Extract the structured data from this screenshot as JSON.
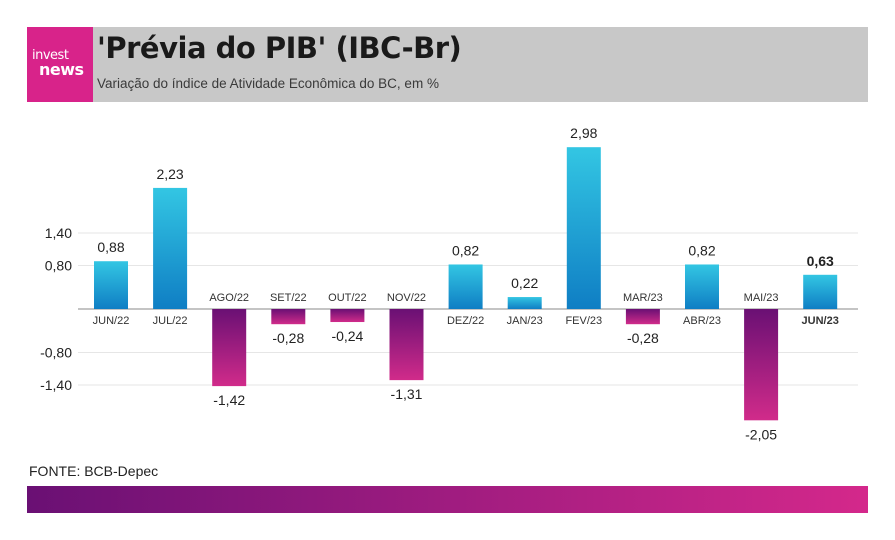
{
  "header": {
    "logo_top": "invest",
    "logo_bottom": "news",
    "title": "'Prévia do PIB' (IBC-Br)",
    "subtitle": "Variação do índice de Atividade Econômica do BC, em %"
  },
  "source": "FONTE: BCB-Depec",
  "colors": {
    "positive_top": "#33c6e3",
    "positive_bottom": "#0f7ec4",
    "negative_top": "#6a1074",
    "negative_bottom": "#d12b8a",
    "header_bg": "#c8c8c8",
    "logo_bg": "#d8238a"
  },
  "chart_data": {
    "type": "bar",
    "title": "'Prévia do PIB' (IBC-Br)",
    "subtitle": "Variação do índice de Atividade Econômica do BC, em %",
    "categories": [
      "JUN/22",
      "JUL/22",
      "AGO/22",
      "SET/22",
      "OUT/22",
      "NOV/22",
      "DEZ/22",
      "JAN/23",
      "FEV/23",
      "MAR/23",
      "ABR/23",
      "MAI/23",
      "JUN/23"
    ],
    "values": [
      0.88,
      2.23,
      -1.42,
      -0.28,
      -0.24,
      -1.31,
      0.82,
      0.22,
      2.98,
      -0.28,
      0.82,
      -2.05,
      0.63
    ],
    "value_labels": [
      "0,88",
      "2,23",
      "-1,42",
      "-0,28",
      "-0,24",
      "-1,31",
      "0,82",
      "0,22",
      "2,98",
      "-0,28",
      "0,82",
      "-2,05",
      "0,63"
    ],
    "highlight_index": 12,
    "yticks": [
      1.4,
      0.8,
      -0.8,
      -1.4
    ],
    "ytick_labels": [
      "1,40",
      "0,80",
      "-0,80",
      "-1,40"
    ],
    "grid": true,
    "xlabel": "",
    "ylabel": ""
  }
}
